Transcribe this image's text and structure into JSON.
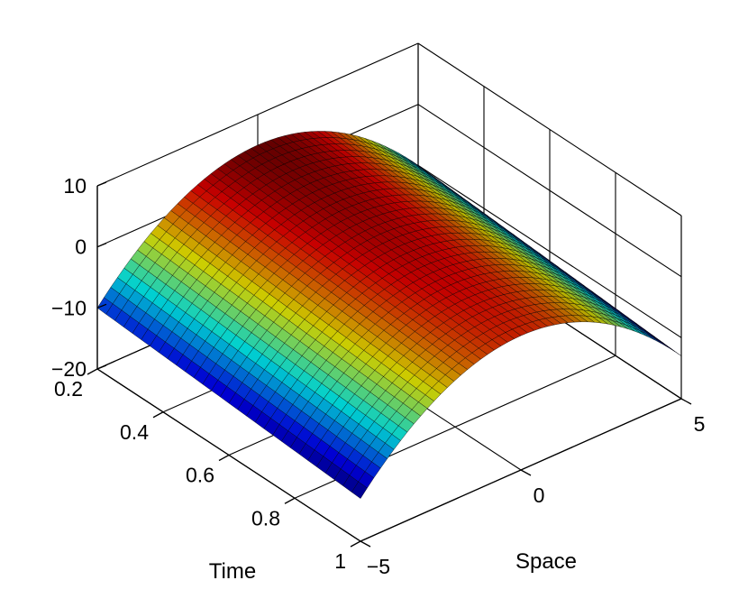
{
  "chart_data": {
    "type": "surface3d",
    "title": "",
    "xlabel": "Space",
    "ylabel": "Time",
    "zlabel": "",
    "xlim": [
      -5,
      5
    ],
    "ylim": [
      0.2,
      1
    ],
    "zlim": [
      -20,
      10
    ],
    "x_ticks": [
      -5,
      0,
      5
    ],
    "x_tick_labels": [
      "−5",
      "0",
      "5"
    ],
    "y_ticks": [
      0.2,
      0.4,
      0.6,
      0.8,
      1
    ],
    "y_tick_labels": [
      "0.2",
      "0.4",
      "0.6",
      "0.8",
      "1"
    ],
    "z_ticks": [
      -20,
      -10,
      0,
      10
    ],
    "z_tick_labels": [
      "−20",
      "−10",
      "0",
      "10"
    ],
    "grid": true,
    "colormap": "jet",
    "surface": {
      "function": "peak minus 0.6*x^2, peak decreasing with time",
      "x_range": [
        -5,
        5
      ],
      "t_range": [
        0.2,
        1
      ],
      "nx": 48,
      "nt": 30,
      "peak_at_t0.2": 5,
      "peak_at_t1": 2,
      "curvature": 0.6
    }
  }
}
